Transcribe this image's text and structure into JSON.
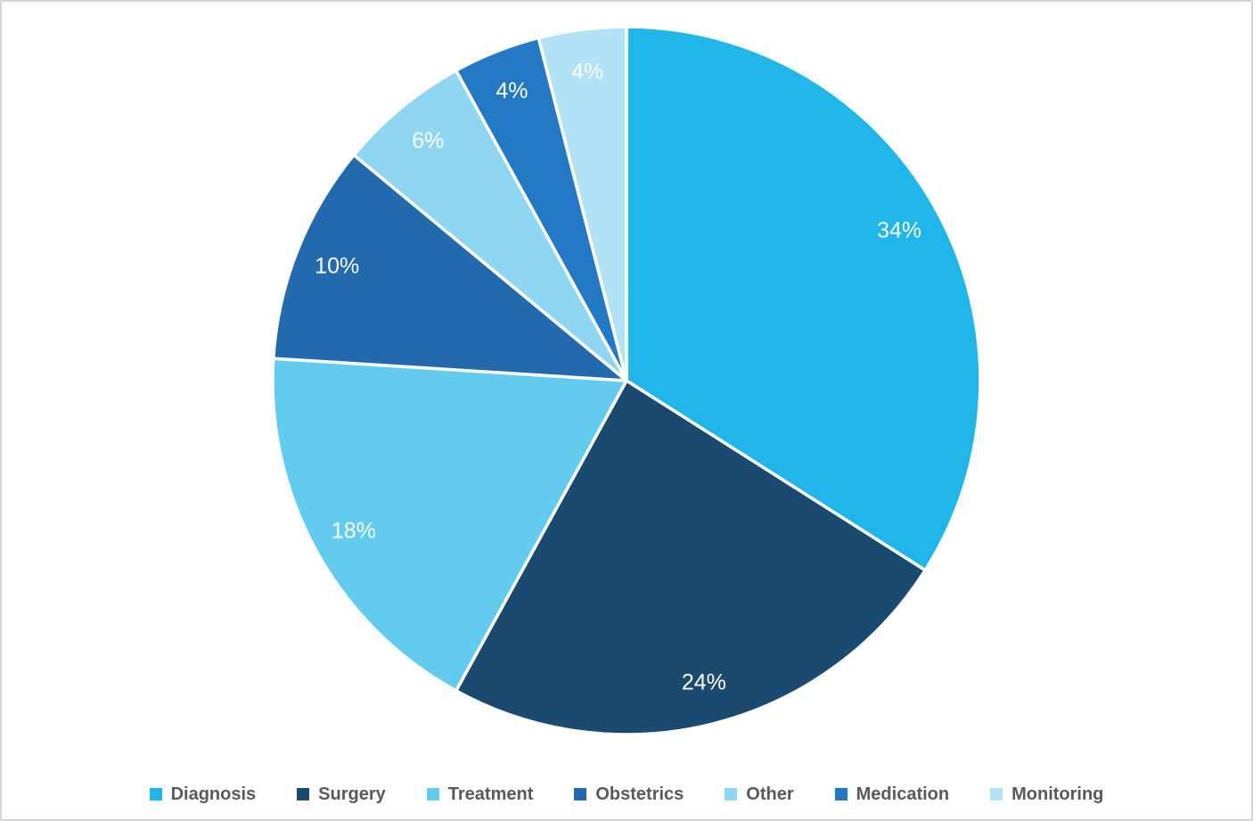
{
  "chart_data": {
    "type": "pie",
    "title": "",
    "categories": [
      "Diagnosis",
      "Surgery",
      "Treatment",
      "Obstetrics",
      "Other",
      "Medication",
      "Monitoring"
    ],
    "values": [
      34,
      24,
      18,
      10,
      6,
      4,
      4
    ],
    "data_labels": [
      "34%",
      "24%",
      "18%",
      "10%",
      "6%",
      "4%",
      "4%"
    ],
    "colors": [
      "#21B6E9",
      "#1A4A70",
      "#63CBEE",
      "#2269AE",
      "#8FD6F2",
      "#2379C4",
      "#B2E2F5"
    ],
    "start_angle_deg": 0,
    "direction": "clockwise",
    "legend_position": "bottom",
    "data_label_color": "#FFFFFF",
    "legend_text_color": "#595959",
    "slice_separator_color": "#FFFFFF",
    "background_color": "#FFFFFF",
    "frame_border_color": "#D5D5D5"
  }
}
